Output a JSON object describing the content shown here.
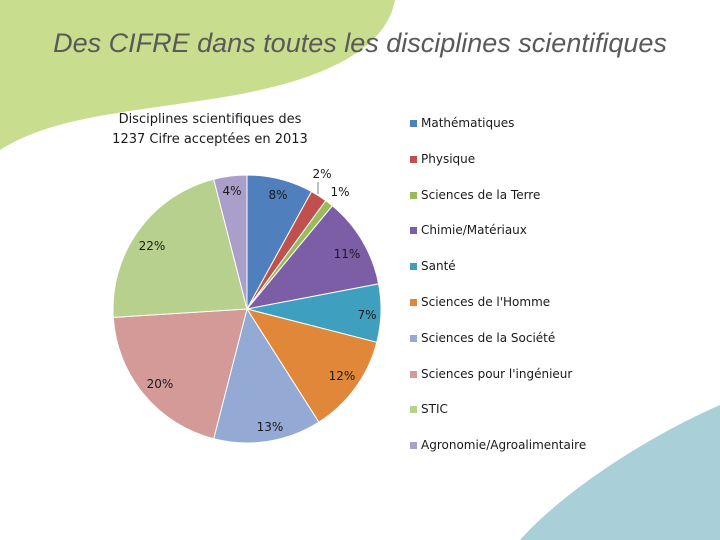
{
  "slide": {
    "title": "Des CIFRE dans toutes les disciplines scientifiques"
  },
  "colors": {
    "background_green": "#c9dd8e",
    "background_blue": "#a9cfd8"
  },
  "chart_data": {
    "type": "pie",
    "title": "Disciplines scientifiques des 1237 Cifre acceptées en 2013",
    "title_lines": [
      "Disciplines scientifiques des",
      "1237 Cifre acceptées en 2013"
    ],
    "legend_position": "right",
    "categories": [
      "Mathématiques",
      "Physique",
      "Sciences de la Terre",
      "Chimie/Matériaux",
      "Santé",
      "Sciences de l'Homme",
      "Sciences de la Société",
      "Sciences pour l'ingénieur",
      "STIC",
      "Agronomie/Agroalimentaire"
    ],
    "values": [
      8,
      2,
      1,
      11,
      7,
      12,
      13,
      20,
      22,
      4
    ],
    "value_labels": [
      "8%",
      "2%",
      "1%",
      "11%",
      "7%",
      "12%",
      "13%",
      "20%",
      "22%",
      "4%"
    ],
    "colors": [
      "#4f7fbd",
      "#c0504d",
      "#9bbb59",
      "#7b5ea6",
      "#3f9fbf",
      "#e0873a",
      "#94aad4",
      "#d49a98",
      "#b8d08e",
      "#a99fca"
    ]
  }
}
